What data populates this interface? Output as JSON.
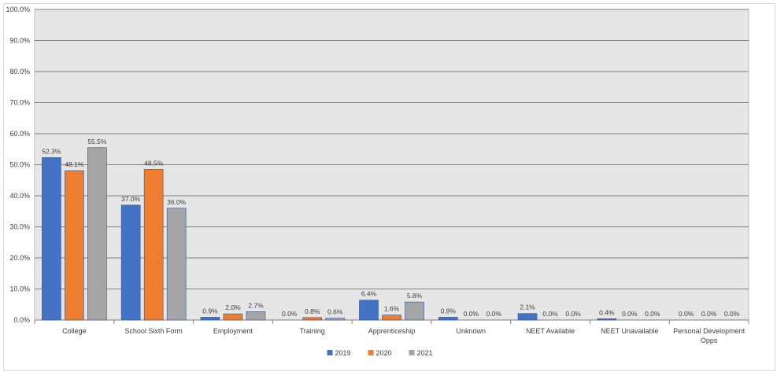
{
  "chart_data": {
    "type": "bar",
    "categories": [
      "College",
      "School Sixth Form",
      "Employment",
      "Training",
      "Apprenticeship",
      "Unknown",
      "NEET Available",
      "NEET Unavailable",
      "Personal Development Opps"
    ],
    "series": [
      {
        "name": "2019",
        "values": [
          52.3,
          37.0,
          0.9,
          0.0,
          6.4,
          0.9,
          2.1,
          0.4,
          0.0
        ],
        "labels": [
          "52.3%",
          "37.0%",
          "0.9%",
          "0.0%",
          "6.4%",
          "0.9%",
          "2.1%",
          "0.4%",
          "0.0%"
        ],
        "color": "#4472C4"
      },
      {
        "name": "2020",
        "values": [
          48.1,
          48.5,
          2.0,
          0.8,
          1.6,
          0.0,
          0.0,
          0.0,
          0.0
        ],
        "labels": [
          "48.1%",
          "48.5%",
          "2.0%",
          "0.8%",
          "1.6%",
          "0.0%",
          "0.0%",
          "0.0%",
          "0.0%"
        ],
        "color": "#ED7D31"
      },
      {
        "name": "2021",
        "values": [
          55.5,
          36.0,
          2.7,
          0.6,
          5.8,
          0.0,
          0.0,
          0.0,
          0.0
        ],
        "labels": [
          "55.5%",
          "36.0%",
          "2.7%",
          "0.6%",
          "5.8%",
          "0.0%",
          "0.0%",
          "0.0%",
          "0.0%"
        ],
        "color": "#A5A5A5"
      }
    ],
    "yticks": [
      "0.0%",
      "10.0%",
      "20.0%",
      "30.0%",
      "40.0%",
      "50.0%",
      "60.0%",
      "70.0%",
      "80.0%",
      "90.0%",
      "100.0%"
    ],
    "ylim": [
      0,
      100
    ],
    "grid": true,
    "legend": "bottom-center",
    "plot_background": "#E7E6E6",
    "gridline_color": "#7F7F7F"
  }
}
